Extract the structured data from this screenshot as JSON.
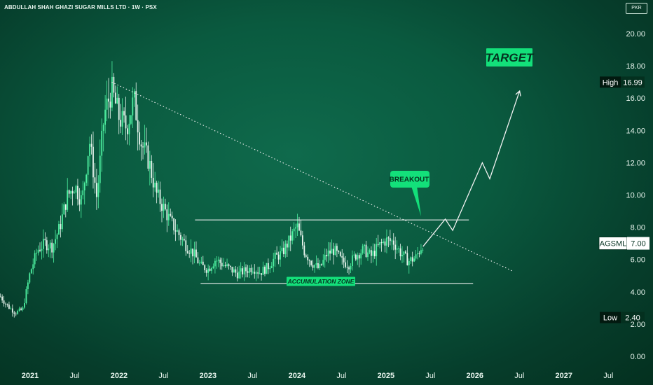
{
  "header": {
    "title": "ABDULLAH SHAH GHAZI SUGAR MILLS LTD · 1W · PSX",
    "currency": "PKR"
  },
  "colors": {
    "background": "#0a5a3f",
    "candle_up": "#4ef0a0",
    "candle_down": "#e8f5ee",
    "line": "#f2f2f2",
    "label_bg": "#13e07a",
    "label_text": "#04301f"
  },
  "chart_data": {
    "type": "candlestick",
    "symbol": "AGSML",
    "interval": "1W",
    "exchange": "PSX",
    "y_ticks": [
      "0.00",
      "2.00",
      "4.00",
      "6.00",
      "8.00",
      "10.00",
      "12.00",
      "14.00",
      "16.00",
      "18.00",
      "20.00"
    ],
    "ylim": [
      -1,
      21.3
    ],
    "x_ticks": [
      "2021",
      "Jul",
      "2022",
      "Jul",
      "2023",
      "Jul",
      "2024",
      "Jul",
      "2025",
      "Jul",
      "2026",
      "Jul",
      "2027",
      "Jul"
    ],
    "x_tick_dates": [
      "2021-01",
      "2021-07",
      "2022-01",
      "2022-07",
      "2023-01",
      "2023-07",
      "2024-01",
      "2024-07",
      "2025-01",
      "2025-07",
      "2026-01",
      "2026-07",
      "2027-01",
      "2027-07"
    ],
    "price_path": [
      [
        "2020-09",
        3.7
      ],
      [
        "2020-10",
        3.1
      ],
      [
        "2020-11",
        2.7
      ],
      [
        "2020-12",
        2.9
      ],
      [
        "2021-01",
        5.2
      ],
      [
        "2021-02",
        6.6
      ],
      [
        "2021-03",
        7.0
      ],
      [
        "2021-04",
        6.8
      ],
      [
        "2021-05",
        8.0
      ],
      [
        "2021-06",
        9.9
      ],
      [
        "2021-07",
        10.6
      ],
      [
        "2021-08",
        9.6
      ],
      [
        "2021-09",
        13.4
      ],
      [
        "2021-10",
        9.8
      ],
      [
        "2021-11",
        15.0
      ],
      [
        "2021-12",
        16.5
      ],
      [
        "2022-01",
        14.8
      ],
      [
        "2022-02",
        14.2
      ],
      [
        "2022-03",
        15.9
      ],
      [
        "2022-04",
        13.2
      ],
      [
        "2022-05",
        12.1
      ],
      [
        "2022-06",
        10.1
      ],
      [
        "2022-07",
        9.2
      ],
      [
        "2022-08",
        8.3
      ],
      [
        "2022-09",
        7.6
      ],
      [
        "2022-10",
        6.9
      ],
      [
        "2022-11",
        6.4
      ],
      [
        "2022-12",
        5.6
      ],
      [
        "2023-01",
        5.4
      ],
      [
        "2023-02",
        6.0
      ],
      [
        "2023-03",
        5.7
      ],
      [
        "2023-04",
        5.4
      ],
      [
        "2023-05",
        5.1
      ],
      [
        "2023-06",
        5.3
      ],
      [
        "2023-07",
        5.5
      ],
      [
        "2023-08",
        5.2
      ],
      [
        "2023-09",
        5.5
      ],
      [
        "2023-10",
        6.1
      ],
      [
        "2023-11",
        6.4
      ],
      [
        "2023-12",
        7.2
      ],
      [
        "2024-01",
        8.1
      ],
      [
        "2024-02",
        6.5
      ],
      [
        "2024-03",
        5.8
      ],
      [
        "2024-04",
        5.4
      ],
      [
        "2024-05",
        6.3
      ],
      [
        "2024-06",
        6.6
      ],
      [
        "2024-07",
        5.9
      ],
      [
        "2024-08",
        5.7
      ],
      [
        "2024-09",
        6.3
      ],
      [
        "2024-10",
        6.6
      ],
      [
        "2024-11",
        6.2
      ],
      [
        "2024-12",
        6.8
      ],
      [
        "2025-01",
        7.2
      ],
      [
        "2025-02",
        7.1
      ],
      [
        "2025-03",
        6.4
      ],
      [
        "2025-04",
        5.9
      ],
      [
        "2025-05",
        6.1
      ],
      [
        "2025-06",
        7.0
      ]
    ],
    "high": 16.99,
    "low": 2.4,
    "last": 7.0,
    "trendline": {
      "from": [
        "2021-12",
        16.99
      ],
      "to": [
        "2026-06",
        5.3
      ]
    },
    "resistance": {
      "from": [
        "2022-12",
        8.45
      ],
      "to": [
        "2025-12",
        8.45
      ]
    },
    "support": {
      "from": [
        "2022-12",
        4.5
      ],
      "to": [
        "2025-12",
        4.5
      ]
    },
    "projection": [
      [
        "2025-06",
        6.8
      ],
      [
        "2025-09",
        8.5
      ],
      [
        "2025-10",
        7.8
      ],
      [
        "2026-02",
        12.0
      ],
      [
        "2026-03",
        11.0
      ],
      [
        "2026-07",
        16.4
      ]
    ],
    "annotations": {
      "target": "TARGET",
      "breakout": "BREAKOUT",
      "zone": "ACCUMULATION ZONE"
    },
    "price_labels": {
      "high_label": "High",
      "high_value": "16.99",
      "symbol_label": "AGSML",
      "symbol_value": "7.00",
      "low_label": "Low",
      "low_value": "2.40"
    }
  }
}
